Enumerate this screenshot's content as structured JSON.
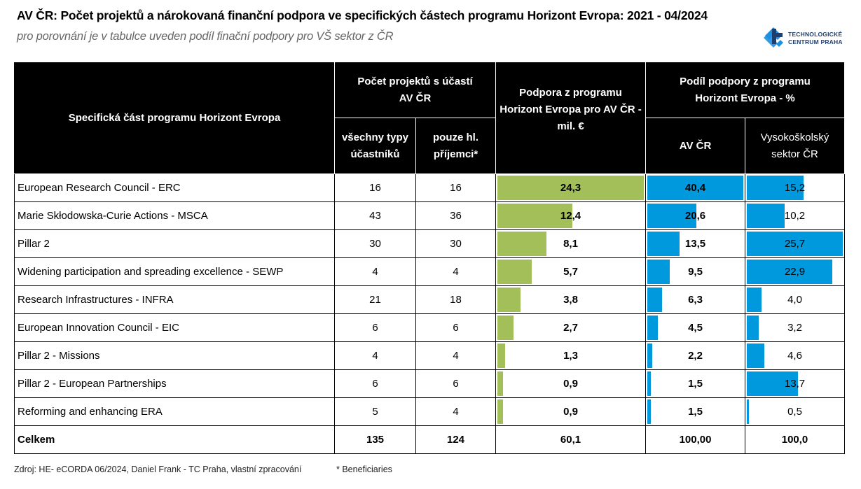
{
  "title": "AV ČR: Počet projektů a nárokovaná finanční podpora ve specifických částech programu Horizont Evropa: 2021 - 04/2024",
  "subtitle": "pro porovnání je v tabulce uveden podíl finační podpory pro VŠ sektor z ČR",
  "logo": {
    "line1": "TECHNOLOGICKÉ",
    "line2": "CENTRUM PRAHA",
    "colors": {
      "light": "#1e90e0",
      "dark": "#1f3e6e"
    }
  },
  "colors": {
    "header_bg": "#000000",
    "bar_green": "#a2bf5a",
    "bar_blue": "#0099dd"
  },
  "table": {
    "headers": {
      "part": "Specifická část programu Horizont Evropa",
      "projects_group": "Počet projektů s účastí AV ČR",
      "all_types": "všechny typy účastníků",
      "main_beneficiaries": "pouze hl. příjemci*",
      "support": "Podpora z programu Horizont Evropa pro AV ČR - mil. €",
      "share_group": "Podíl podpory z programu Horizont Evropa - %",
      "share_av": "AV ČR",
      "share_vs": "Vysokoškolský sektor ČR"
    },
    "rows": [
      {
        "part": "European Research Council - ERC",
        "all": "16",
        "main": "16",
        "support": "24,3",
        "support_v": 24.3,
        "av": "40,4",
        "av_v": 40.4,
        "vs": "15,2",
        "vs_v": 15.2
      },
      {
        "part": "Marie Skłodowska-Curie Actions - MSCA",
        "all": "43",
        "main": "36",
        "support": "12,4",
        "support_v": 12.4,
        "av": "20,6",
        "av_v": 20.6,
        "vs": "10,2",
        "vs_v": 10.2
      },
      {
        "part": "Pillar 2",
        "all": "30",
        "main": "30",
        "support": "8,1",
        "support_v": 8.1,
        "av": "13,5",
        "av_v": 13.5,
        "vs": "25,7",
        "vs_v": 25.7
      },
      {
        "part": "Widening participation and spreading excellence -  SEWP",
        "all": "4",
        "main": "4",
        "support": "5,7",
        "support_v": 5.7,
        "av": "9,5",
        "av_v": 9.5,
        "vs": "22,9",
        "vs_v": 22.9
      },
      {
        "part": "Research Infrastructures - INFRA",
        "all": "21",
        "main": "18",
        "support": "3,8",
        "support_v": 3.8,
        "av": "6,3",
        "av_v": 6.3,
        "vs": "4,0",
        "vs_v": 4.0
      },
      {
        "part": "European Innovation Council - EIC",
        "all": "6",
        "main": "6",
        "support": "2,7",
        "support_v": 2.7,
        "av": "4,5",
        "av_v": 4.5,
        "vs": "3,2",
        "vs_v": 3.2
      },
      {
        "part": "Pillar 2 - Missions",
        "all": "4",
        "main": "4",
        "support": "1,3",
        "support_v": 1.3,
        "av": "2,2",
        "av_v": 2.2,
        "vs": "4,6",
        "vs_v": 4.6
      },
      {
        "part": "Pillar 2 - European Partnerships",
        "all": "6",
        "main": "6",
        "support": "0,9",
        "support_v": 0.9,
        "av": "1,5",
        "av_v": 1.5,
        "vs": "13,7",
        "vs_v": 13.7
      },
      {
        "part": "Reforming and enhancing ERA",
        "all": "5",
        "main": "4",
        "support": "0,9",
        "support_v": 0.9,
        "av": "1,5",
        "av_v": 1.5,
        "vs": "0,5",
        "vs_v": 0.5
      }
    ],
    "total": {
      "part": "Celkem",
      "all": "135",
      "main": "124",
      "support": "60,1",
      "av": "100,00",
      "vs": "100,0"
    },
    "bar_max": {
      "support": 24.3,
      "av": 40.4,
      "vs": 25.7
    }
  },
  "footer": {
    "source": "Zdroj: HE- eCORDA 06/2024, Daniel Frank - TC Praha, vlastní zpracování",
    "note": "* Beneficiaries"
  }
}
